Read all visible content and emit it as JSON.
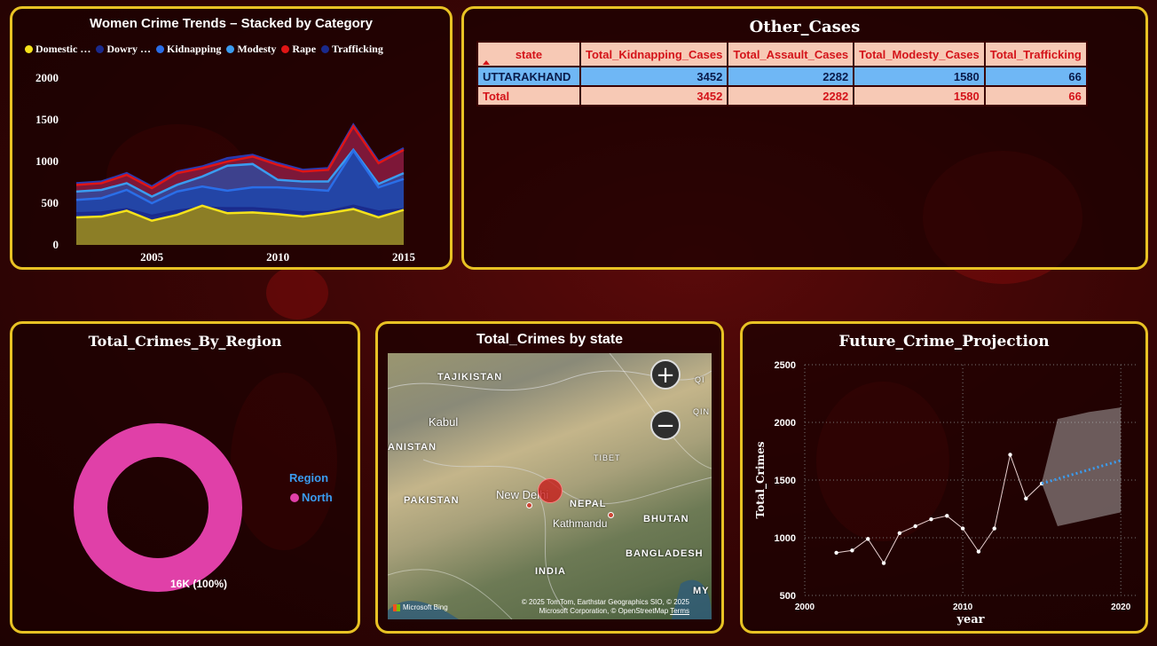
{
  "trends": {
    "title": "Women Crime Trends – Stacked by Category",
    "legend": [
      {
        "label": "Domestic …",
        "color": "#f5e21b"
      },
      {
        "label": "Dowry …",
        "color": "#1a2a8c"
      },
      {
        "label": "Kidnapping",
        "color": "#2a6ee8"
      },
      {
        "label": "Modesty",
        "color": "#3a9cf0"
      },
      {
        "label": "Rape",
        "color": "#e01515"
      },
      {
        "label": "Trafficking",
        "color": "#1a2a8c"
      }
    ],
    "y_ticks": [
      "2000",
      "1500",
      "1000",
      "500",
      "0"
    ],
    "x_ticks": [
      "2005",
      "2010",
      "2015"
    ]
  },
  "chart_data": [
    {
      "type": "area",
      "title": "Women Crime Trends – Stacked by Category",
      "x": [
        2002,
        2003,
        2004,
        2005,
        2006,
        2007,
        2008,
        2009,
        2010,
        2011,
        2012,
        2013,
        2014,
        2015
      ],
      "ylim": [
        0,
        2000
      ],
      "series": [
        {
          "name": "Domestic …",
          "values": [
            330,
            340,
            410,
            290,
            360,
            470,
            380,
            390,
            370,
            340,
            380,
            430,
            330,
            420
          ]
        },
        {
          "name": "Dowry …",
          "values": [
            380,
            390,
            430,
            350,
            410,
            450,
            440,
            440,
            420,
            390,
            400,
            470,
            400,
            430
          ]
        },
        {
          "name": "Kidnapping",
          "values": [
            540,
            560,
            660,
            500,
            640,
            700,
            650,
            690,
            690,
            670,
            650,
            1130,
            690,
            790
          ]
        },
        {
          "name": "Modesty",
          "values": [
            640,
            660,
            740,
            580,
            720,
            820,
            950,
            970,
            780,
            760,
            760,
            1140,
            730,
            860
          ]
        },
        {
          "name": "Rape",
          "values": [
            720,
            740,
            840,
            680,
            860,
            920,
            1000,
            1060,
            960,
            880,
            900,
            1420,
            980,
            1140
          ]
        },
        {
          "name": "Trafficking",
          "values": [
            740,
            760,
            860,
            700,
            880,
            940,
            1040,
            1080,
            980,
            900,
            920,
            1440,
            1000,
            1160
          ]
        }
      ]
    },
    {
      "type": "pie",
      "title": "Total_Crimes_By_Region",
      "categories": [
        "North"
      ],
      "values": [
        16000
      ],
      "labels": [
        "16K (100%)"
      ]
    },
    {
      "type": "line",
      "title": "Future_Crime_Projection",
      "xlabel": "year",
      "ylabel": "Total_Crimes",
      "xlim": [
        2000,
        2021
      ],
      "ylim": [
        500,
        2500
      ],
      "actual": {
        "x": [
          2002,
          2003,
          2004,
          2005,
          2006,
          2007,
          2008,
          2009,
          2010,
          2011,
          2012,
          2013,
          2014,
          2015
        ],
        "values": [
          870,
          890,
          990,
          780,
          1040,
          1100,
          1160,
          1190,
          1080,
          880,
          1080,
          1720,
          1340,
          1470
        ]
      },
      "forecast": {
        "x": [
          2015,
          2016,
          2017,
          2018,
          2019,
          2020
        ],
        "values": [
          1470,
          1510,
          1550,
          1590,
          1630,
          1670
        ],
        "upper": [
          1480,
          2030,
          2060,
          2090,
          2110,
          2130
        ],
        "lower": [
          1470,
          1100,
          1130,
          1160,
          1190,
          1220
        ]
      }
    }
  ],
  "other_cases": {
    "title": "Other_Cases",
    "columns": [
      "state",
      "Total_Kidnapping_Cases",
      "Total_Assault_Cases",
      "Total_Modesty_Cases",
      "Total_Trafficking"
    ],
    "rows": [
      [
        "UTTARAKHAND",
        "3452",
        "2282",
        "1580",
        "66"
      ],
      [
        "Total",
        "3452",
        "2282",
        "1580",
        "66"
      ]
    ]
  },
  "region": {
    "title": "Total_Crimes_By_Region",
    "legend_title": "Region",
    "legend_item": "North",
    "legend_color": "#e040a8",
    "data_label": "16K (100%)"
  },
  "map": {
    "title": "Total_Crimes by state",
    "zoom_in": "+",
    "zoom_out": "−",
    "places": [
      "TAJIKISTAN",
      "Kabul",
      "ANISTAN",
      "PAKISTAN",
      "New Delhi",
      "TIBET",
      "NEPAL",
      "Kathmandu",
      "BHUTAN",
      "INDIA",
      "BANGLADESH",
      "QIN",
      "MY",
      "QI"
    ],
    "attribution": "© 2025 TomTom, Earthstar Geographics SIO, © 2025 Microsoft Corporation, © OpenStreetMap",
    "terms": "Terms",
    "logo": "Microsoft Bing"
  },
  "projection": {
    "title": "Future_Crime_Projection",
    "y_ticks": [
      "2500",
      "2000",
      "1500",
      "1000",
      "500"
    ],
    "x_ticks": [
      "2000",
      "2010",
      "2020"
    ],
    "xlabel": "year",
    "ylabel": "Total_Crimes"
  }
}
